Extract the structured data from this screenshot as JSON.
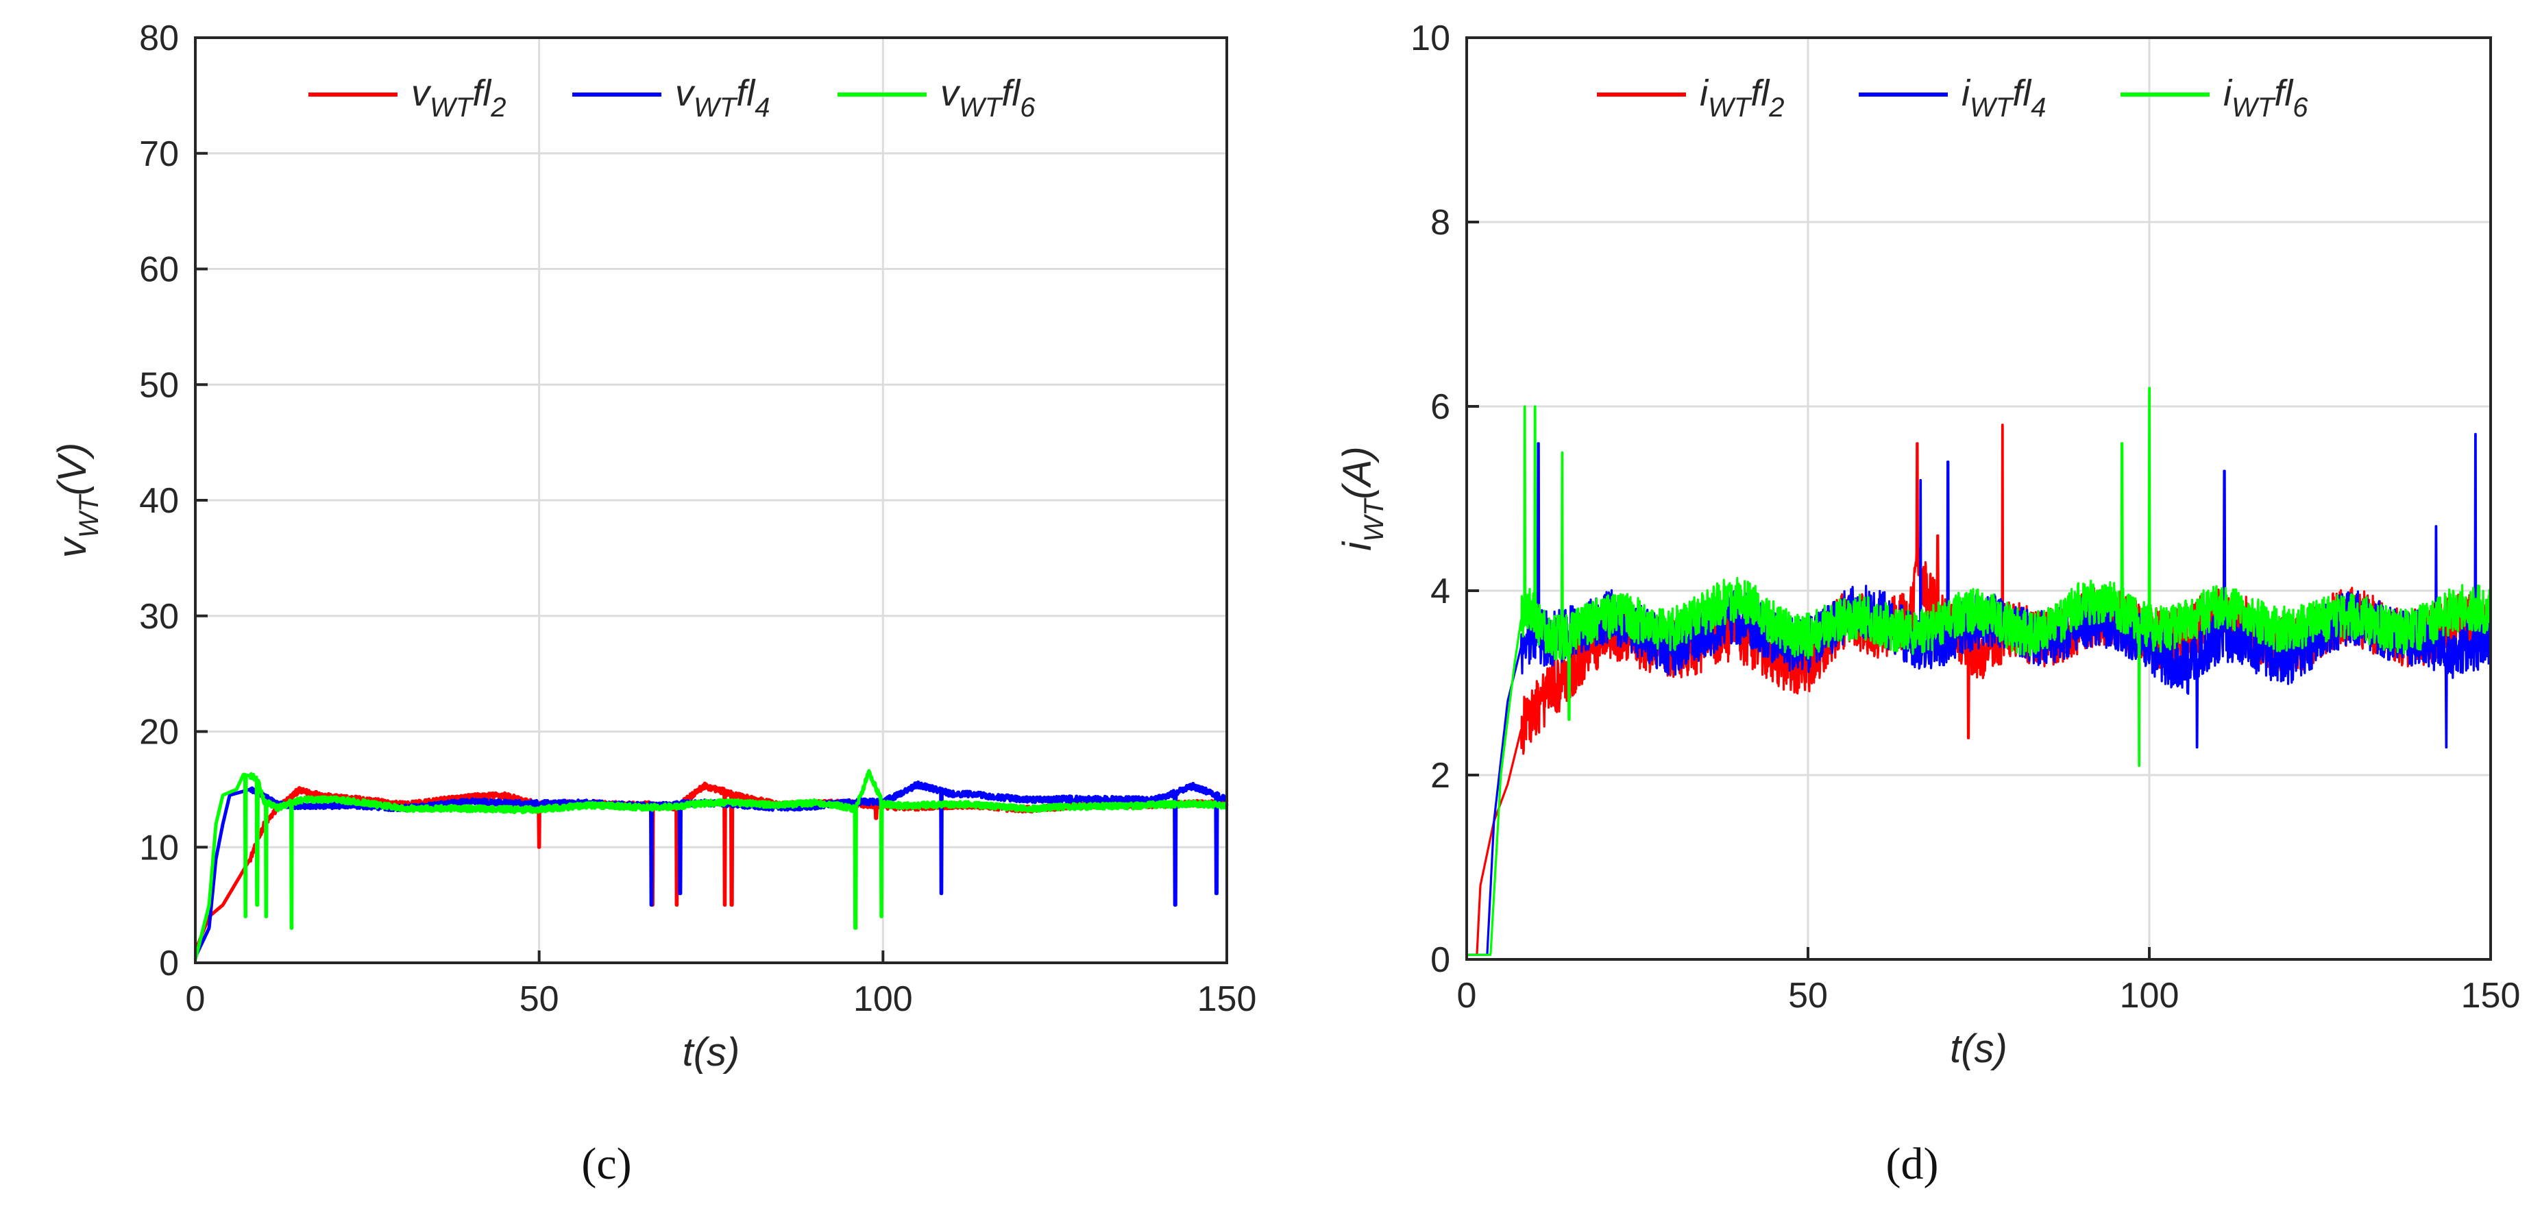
{
  "colors": {
    "red": "#ff0000",
    "blue": "#0000ff",
    "green": "#00ff00",
    "grid": "#dcdcdc",
    "axis": "#262626"
  },
  "chart_data": [
    {
      "type": "line",
      "panel_label": "(c)",
      "xlabel": "t(s)",
      "ylabel": {
        "base": "v",
        "sub": "WT",
        "unit": "(V)"
      },
      "xlim": [
        0,
        150
      ],
      "ylim": [
        0,
        80
      ],
      "xticks": [
        "0",
        "50",
        "100",
        "150"
      ],
      "yticks": [
        "0",
        "10",
        "20",
        "30",
        "40",
        "50",
        "60",
        "70",
        "80"
      ],
      "legend_position": "top",
      "series": [
        {
          "name": "v_WT fl_2",
          "label": {
            "base": "v",
            "sub": "WT",
            "mid": "fl",
            "idx": "2"
          },
          "color": "red",
          "steady": 13.6,
          "noise": 0.25,
          "values": [
            [
              0,
              1
            ],
            [
              2,
              4
            ],
            [
              4,
              5
            ],
            [
              6,
              7
            ],
            [
              8,
              9
            ],
            [
              10,
              12
            ],
            [
              12,
              13.5
            ],
            [
              15,
              15
            ],
            [
              20,
              14.2
            ],
            [
              30,
              13.8
            ],
            [
              40,
              14.2
            ],
            [
              45,
              14.5
            ],
            [
              50,
              13.8
            ],
            [
              60,
              13.6
            ],
            [
              66,
              13.8
            ],
            [
              70,
              13.5
            ],
            [
              74,
              15.2
            ],
            [
              78,
              14.5
            ],
            [
              85,
              13.8
            ],
            [
              100,
              13.6
            ],
            [
              110,
              13.5
            ],
            [
              120,
              13.4
            ],
            [
              130,
              13.5
            ],
            [
              140,
              13.8
            ],
            [
              150,
              13.6
            ]
          ],
          "spikes": [
            [
              50,
              10
            ],
            [
              66.5,
              5
            ],
            [
              70,
              5
            ],
            [
              77,
              5
            ],
            [
              78,
              5
            ],
            [
              99,
              12.5
            ]
          ]
        },
        {
          "name": "v_WT fl_4",
          "label": {
            "base": "v",
            "sub": "WT",
            "mid": "fl",
            "idx": "4"
          },
          "color": "blue",
          "steady": 13.6,
          "noise": 0.25,
          "values": [
            [
              0,
              0.5
            ],
            [
              2,
              3
            ],
            [
              3,
              9
            ],
            [
              4,
              12
            ],
            [
              5,
              14.5
            ],
            [
              8,
              15
            ],
            [
              10,
              14.5
            ],
            [
              12,
              13.8
            ],
            [
              20,
              13.5
            ],
            [
              30,
              13.5
            ],
            [
              40,
              13.8
            ],
            [
              50,
              13.9
            ],
            [
              60,
              13.6
            ],
            [
              70,
              13.8
            ],
            [
              80,
              13.6
            ],
            [
              90,
              13.5
            ],
            [
              100,
              14
            ],
            [
              105,
              15.5
            ],
            [
              110,
              14.5
            ],
            [
              120,
              14.3
            ],
            [
              130,
              14
            ],
            [
              140,
              14.3
            ],
            [
              145,
              15.2
            ],
            [
              150,
              14
            ]
          ],
          "spikes": [
            [
              66.3,
              5
            ],
            [
              70.5,
              6
            ],
            [
              108.5,
              6
            ],
            [
              142.5,
              5
            ],
            [
              148.5,
              6
            ]
          ]
        },
        {
          "name": "v_WT fl_6",
          "label": {
            "base": "v",
            "sub": "WT",
            "mid": "fl",
            "idx": "6"
          },
          "color": "green",
          "steady": 13.6,
          "noise": 0.25,
          "values": [
            [
              0,
              0.3
            ],
            [
              2,
              5
            ],
            [
              3,
              12
            ],
            [
              4,
              14.5
            ],
            [
              6,
              15
            ],
            [
              7,
              16.3
            ],
            [
              9,
              16
            ],
            [
              10,
              14
            ],
            [
              12,
              13.5
            ],
            [
              14,
              14
            ],
            [
              16,
              14.2
            ],
            [
              20,
              14
            ],
            [
              30,
              13.5
            ],
            [
              40,
              13.2
            ],
            [
              50,
              13.4
            ],
            [
              60,
              13.5
            ],
            [
              70,
              13.6
            ],
            [
              80,
              13.8
            ],
            [
              90,
              13.8
            ],
            [
              96,
              13.2
            ],
            [
              98,
              16.5
            ],
            [
              100,
              13.8
            ],
            [
              110,
              13.6
            ],
            [
              120,
              13.5
            ],
            [
              130,
              13.4
            ],
            [
              140,
              13.8
            ],
            [
              150,
              13.5
            ]
          ],
          "spikes": [
            [
              7.3,
              4
            ],
            [
              9,
              5
            ],
            [
              10.3,
              4
            ],
            [
              14,
              3
            ],
            [
              96,
              3
            ],
            [
              99.8,
              4
            ]
          ]
        }
      ]
    },
    {
      "type": "line",
      "panel_label": "(d)",
      "xlabel": "t(s)",
      "ylabel": {
        "base": "i",
        "sub": "WT",
        "unit": "(A)"
      },
      "xlim": [
        0,
        150
      ],
      "ylim": [
        0,
        10
      ],
      "xticks": [
        "0",
        "50",
        "100",
        "150"
      ],
      "yticks": [
        "0",
        "2",
        "4",
        "6",
        "8",
        "10"
      ],
      "legend_position": "top",
      "series": [
        {
          "name": "i_WT fl_2",
          "label": {
            "base": "i",
            "sub": "WT",
            "mid": "fl",
            "idx": "2"
          },
          "color": "red",
          "noise": 0.32,
          "values": [
            [
              0,
              0.05
            ],
            [
              1.5,
              0.05
            ],
            [
              2,
              0.8
            ],
            [
              4,
              1.5
            ],
            [
              6,
              1.9
            ],
            [
              8,
              2.5
            ],
            [
              10,
              2.8
            ],
            [
              12,
              3
            ],
            [
              15,
              3.2
            ],
            [
              20,
              3.4
            ],
            [
              30,
              3.5
            ],
            [
              40,
              3.4
            ],
            [
              50,
              3.3
            ],
            [
              55,
              3.6
            ],
            [
              60,
              3.5
            ],
            [
              65,
              3.8
            ],
            [
              66,
              4.3
            ],
            [
              70,
              3.7
            ],
            [
              75,
              3.2
            ],
            [
              80,
              3.6
            ],
            [
              90,
              3.6
            ],
            [
              100,
              3.6
            ],
            [
              110,
              3.6
            ],
            [
              120,
              3.5
            ],
            [
              130,
              3.6
            ],
            [
              140,
              3.6
            ],
            [
              150,
              3.5
            ]
          ],
          "spikes": [
            [
              66,
              5.6
            ],
            [
              78.5,
              5.8
            ],
            [
              73.5,
              2.4
            ],
            [
              69,
              4.6
            ]
          ]
        },
        {
          "name": "i_WT fl_4",
          "label": {
            "base": "i",
            "sub": "WT",
            "mid": "fl",
            "idx": "4"
          },
          "color": "blue",
          "noise": 0.3,
          "values": [
            [
              0,
              0.05
            ],
            [
              3,
              0.05
            ],
            [
              4,
              1.5
            ],
            [
              6,
              2.8
            ],
            [
              8,
              3.4
            ],
            [
              10,
              3.6
            ],
            [
              15,
              3.6
            ],
            [
              20,
              3.6
            ],
            [
              30,
              3.5
            ],
            [
              40,
              3.6
            ],
            [
              50,
              3.5
            ],
            [
              60,
              3.7
            ],
            [
              70,
              3.5
            ],
            [
              80,
              3.6
            ],
            [
              90,
              3.6
            ],
            [
              100,
              3.5
            ],
            [
              106,
              3.2
            ],
            [
              110,
              3.4
            ],
            [
              120,
              3.4
            ],
            [
              130,
              3.6
            ],
            [
              140,
              3.6
            ],
            [
              145,
              3.2
            ],
            [
              150,
              3.4
            ]
          ],
          "spikes": [
            [
              10.5,
              5.6
            ],
            [
              66.5,
              5.2
            ],
            [
              70.5,
              5.4
            ],
            [
              111,
              5.3
            ],
            [
              142,
              4.7
            ],
            [
              147.8,
              5.7
            ],
            [
              107,
              2.3
            ],
            [
              143.5,
              2.3
            ]
          ]
        },
        {
          "name": "i_WT fl_6",
          "label": {
            "base": "i",
            "sub": "WT",
            "mid": "fl",
            "idx": "6"
          },
          "color": "green",
          "noise": 0.25,
          "values": [
            [
              0,
              0.05
            ],
            [
              3.5,
              0.05
            ],
            [
              5,
              2
            ],
            [
              7,
              3.2
            ],
            [
              8,
              3.7
            ],
            [
              9,
              3.9
            ],
            [
              12,
              3.6
            ],
            [
              20,
              3.6
            ],
            [
              30,
              3.7
            ],
            [
              40,
              3.8
            ],
            [
              50,
              3.6
            ],
            [
              60,
              3.6
            ],
            [
              70,
              3.7
            ],
            [
              80,
              3.6
            ],
            [
              90,
              3.8
            ],
            [
              100,
              3.7
            ],
            [
              110,
              3.7
            ],
            [
              120,
              3.7
            ],
            [
              130,
              3.6
            ],
            [
              140,
              3.7
            ],
            [
              150,
              3.7
            ]
          ],
          "spikes": [
            [
              8.5,
              6
            ],
            [
              10,
              6
            ],
            [
              14,
              5.5
            ],
            [
              96,
              5.6
            ],
            [
              100,
              6.2
            ],
            [
              98.5,
              2.1
            ],
            [
              15,
              2.6
            ]
          ]
        }
      ]
    }
  ]
}
